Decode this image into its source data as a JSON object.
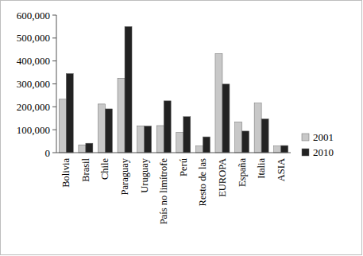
{
  "chart_data": {
    "type": "bar",
    "categories": [
      "Bolivia",
      "Brasil",
      "Chile",
      "Paraguay",
      "Uruguay",
      "País no limítrofe",
      "Perú",
      "Resto de las",
      "EUROPA",
      "España",
      "Italia",
      "ASIA"
    ],
    "series": [
      {
        "name": "2001",
        "color": "#c8c8c8",
        "values": [
          233000,
          34000,
          212000,
          325000,
          117000,
          118000,
          88000,
          29000,
          432000,
          134000,
          216000,
          29000
        ]
      },
      {
        "name": "2010",
        "color": "#222222",
        "values": [
          345000,
          41000,
          191000,
          550000,
          116000,
          226000,
          157000,
          69000,
          299000,
          94000,
          147000,
          31000
        ]
      }
    ],
    "ylim": [
      0,
      600000
    ],
    "yticks": [
      0,
      {
        "value": 100000,
        "label": "100,000"
      },
      {
        "value": 200000,
        "label": "200,000"
      },
      {
        "value": 300000,
        "label": "300,000"
      },
      {
        "value": 400000,
        "label": "400,000"
      },
      {
        "value": 500000,
        "label": "500,000"
      },
      {
        "value": 600000,
        "label": "600,000"
      }
    ],
    "grid": false,
    "legend": "right"
  }
}
